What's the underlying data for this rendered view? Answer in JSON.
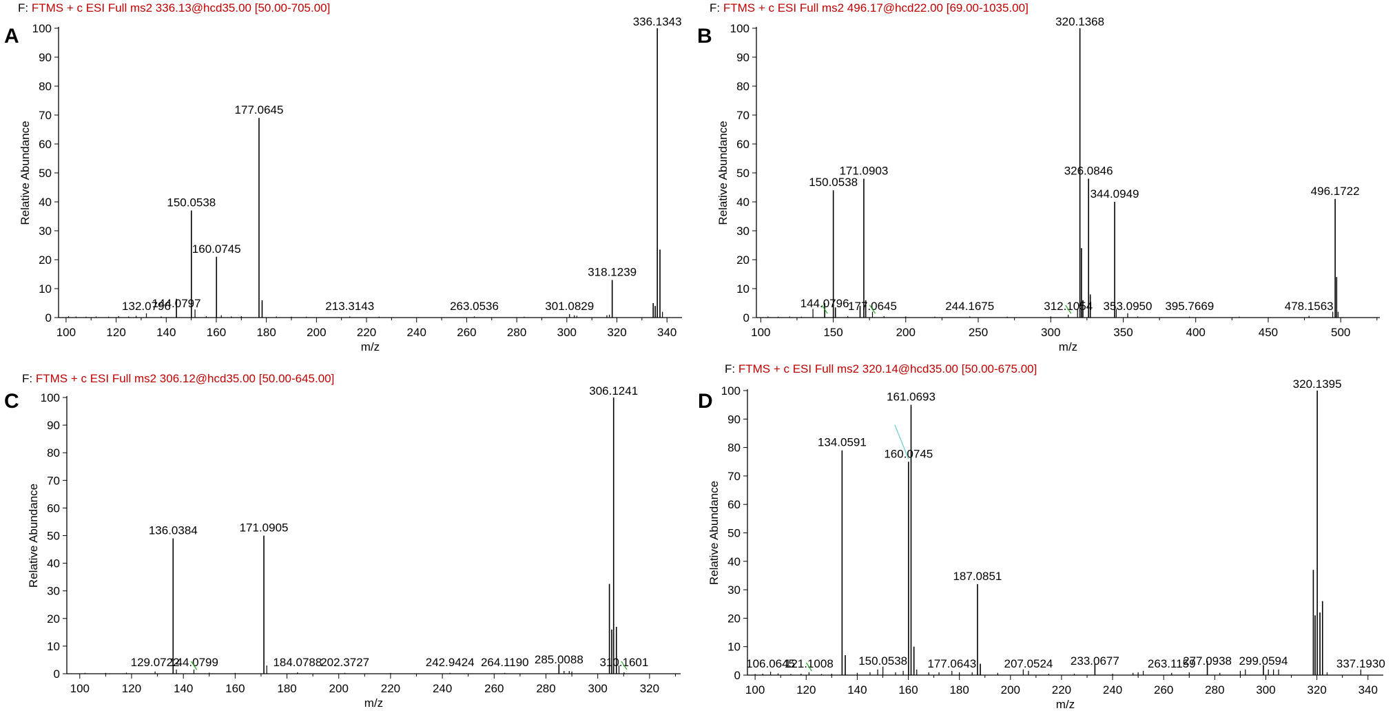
{
  "colors": {
    "axis": "#000000",
    "header_prefix": "#000000",
    "header_text": "#c00000",
    "peak": "#000000",
    "leader_green": "#22aa22",
    "leader_cyan": "#66cccc"
  },
  "chart_data": [
    {
      "panel": "A",
      "type": "bar",
      "header_prefix": "F:",
      "header": "FTMS + c ESI Full ms2 336.13@hcd35.00 [50.00-705.00]",
      "xlabel": "m/z",
      "ylabel": "Relative Abundance",
      "xlim": [
        97,
        346
      ],
      "ylim": [
        0,
        100
      ],
      "xticks": [
        100,
        120,
        140,
        160,
        180,
        200,
        220,
        240,
        260,
        280,
        300,
        320,
        340
      ],
      "yticks": [
        0,
        10,
        20,
        30,
        40,
        50,
        60,
        70,
        80,
        90,
        100
      ],
      "peaks": [
        {
          "mz": 101,
          "y": 0.5
        },
        {
          "mz": 104,
          "y": 0.4
        },
        {
          "mz": 108,
          "y": 0.3
        },
        {
          "mz": 112,
          "y": 0.4
        },
        {
          "mz": 117,
          "y": 0.3
        },
        {
          "mz": 121,
          "y": 0.5
        },
        {
          "mz": 125,
          "y": 0.4
        },
        {
          "mz": 128,
          "y": 0.6
        },
        {
          "mz": 132.0796,
          "y": 1.5
        },
        {
          "mz": 138,
          "y": 0.4
        },
        {
          "mz": 144.0797,
          "y": 6.5
        },
        {
          "mz": 150.0538,
          "y": 37
        },
        {
          "mz": 151.5,
          "y": 2.8
        },
        {
          "mz": 156,
          "y": 0.5
        },
        {
          "mz": 160.0745,
          "y": 21
        },
        {
          "mz": 162,
          "y": 0.8
        },
        {
          "mz": 166,
          "y": 0.4
        },
        {
          "mz": 170,
          "y": 0.5
        },
        {
          "mz": 177.0645,
          "y": 69
        },
        {
          "mz": 178.3,
          "y": 6
        },
        {
          "mz": 184,
          "y": 0.4
        },
        {
          "mz": 190,
          "y": 0.3
        },
        {
          "mz": 196,
          "y": 0.3
        },
        {
          "mz": 213.3143,
          "y": 0.4
        },
        {
          "mz": 225,
          "y": 0.3
        },
        {
          "mz": 263.0536,
          "y": 0.4
        },
        {
          "mz": 283,
          "y": 0.3
        },
        {
          "mz": 301.0829,
          "y": 1.2
        },
        {
          "mz": 303,
          "y": 0.8
        },
        {
          "mz": 304,
          "y": 0.6
        },
        {
          "mz": 316,
          "y": 0.8
        },
        {
          "mz": 317,
          "y": 1
        },
        {
          "mz": 318.1239,
          "y": 13
        },
        {
          "mz": 334.5,
          "y": 5
        },
        {
          "mz": 335.3,
          "y": 4
        },
        {
          "mz": 336.1343,
          "y": 100
        },
        {
          "mz": 337.2,
          "y": 23.5
        },
        {
          "mz": 338.2,
          "y": 2
        }
      ],
      "labels": [
        {
          "text": "336.1343",
          "mz": 336.1343,
          "y": 100
        },
        {
          "text": "177.0645",
          "mz": 177.0645,
          "y": 69
        },
        {
          "text": "150.0538",
          "mz": 150.0538,
          "y": 37
        },
        {
          "text": "160.0745",
          "mz": 160.0745,
          "y": 21
        },
        {
          "text": "318.1239",
          "mz": 318.1239,
          "y": 13
        },
        {
          "text": "144.0797",
          "mz": 144.0797,
          "y": 6.5
        },
        {
          "text": "132.0796",
          "mz": 132.0796,
          "y": 1.5
        },
        {
          "text": "213.3143",
          "mz": 213.3143,
          "y": 0.4
        },
        {
          "text": "263.0536",
          "mz": 263.0536,
          "y": 0.4
        },
        {
          "text": "301.0829",
          "mz": 301.0829,
          "y": 1.2
        }
      ]
    },
    {
      "panel": "B",
      "type": "bar",
      "header_prefix": "F:",
      "header": "FTMS + c ESI Full ms2 496.17@hcd22.00 [69.00-1035.00]",
      "xlabel": "m/z",
      "ylabel": "Relative Abundance",
      "xlim": [
        97,
        527
      ],
      "ylim": [
        0,
        100
      ],
      "xticks": [
        100,
        150,
        200,
        250,
        300,
        350,
        400,
        450,
        500
      ],
      "yticks": [
        0,
        10,
        20,
        30,
        40,
        50,
        60,
        70,
        80,
        90,
        100
      ],
      "peaks": [
        {
          "mz": 105,
          "y": 0.4
        },
        {
          "mz": 112,
          "y": 0.3
        },
        {
          "mz": 120,
          "y": 0.4
        },
        {
          "mz": 128,
          "y": 0.3
        },
        {
          "mz": 136,
          "y": 3
        },
        {
          "mz": 144.0796,
          "y": 5
        },
        {
          "mz": 150.0538,
          "y": 44
        },
        {
          "mz": 151.5,
          "y": 3.5
        },
        {
          "mz": 160,
          "y": 0.5
        },
        {
          "mz": 168.5,
          "y": 4
        },
        {
          "mz": 171.0903,
          "y": 48
        },
        {
          "mz": 172.4,
          "y": 6
        },
        {
          "mz": 177.0645,
          "y": 2
        },
        {
          "mz": 185,
          "y": 0.5
        },
        {
          "mz": 200,
          "y": 0.4
        },
        {
          "mz": 220,
          "y": 0.3
        },
        {
          "mz": 244.1675,
          "y": 0.4
        },
        {
          "mz": 270,
          "y": 0.3
        },
        {
          "mz": 300,
          "y": 0.4
        },
        {
          "mz": 312.1054,
          "y": 1
        },
        {
          "mz": 318.5,
          "y": 3
        },
        {
          "mz": 320.1368,
          "y": 100
        },
        {
          "mz": 321.2,
          "y": 24
        },
        {
          "mz": 322.2,
          "y": 6
        },
        {
          "mz": 326.0846,
          "y": 48
        },
        {
          "mz": 327.3,
          "y": 8
        },
        {
          "mz": 344.0949,
          "y": 40
        },
        {
          "mz": 345.2,
          "y": 3
        },
        {
          "mz": 353.095,
          "y": 1.5
        },
        {
          "mz": 360,
          "y": 0.4
        },
        {
          "mz": 395.7669,
          "y": 0.3
        },
        {
          "mz": 430,
          "y": 0.3
        },
        {
          "mz": 478.1563,
          "y": 0.6
        },
        {
          "mz": 494.5,
          "y": 2
        },
        {
          "mz": 496.1722,
          "y": 41
        },
        {
          "mz": 497.2,
          "y": 14
        },
        {
          "mz": 498.2,
          "y": 2
        }
      ],
      "labels": [
        {
          "text": "320.1368",
          "mz": 320.1368,
          "y": 100
        },
        {
          "text": "171.0903",
          "mz": 171.0903,
          "y": 48
        },
        {
          "text": "150.0538",
          "mz": 150.0538,
          "y": 44
        },
        {
          "text": "326.0846",
          "mz": 326.0846,
          "y": 48
        },
        {
          "text": "344.0949",
          "mz": 344.0949,
          "y": 40
        },
        {
          "text": "496.1722",
          "mz": 496.1722,
          "y": 41
        },
        {
          "text": "144.0796",
          "mz": 144.0796,
          "y": 5
        },
        {
          "text": "177.0645",
          "mz": 177.0645,
          "y": 2
        },
        {
          "text": "244.1675",
          "mz": 244.1675,
          "y": 0.4
        },
        {
          "text": "312.1054",
          "mz": 312.1054,
          "y": 1
        },
        {
          "text": "353.0950",
          "mz": 353.095,
          "y": 1.5
        },
        {
          "text": "395.7669",
          "mz": 395.7669,
          "y": 0.3
        },
        {
          "text": "478.1563",
          "mz": 478.1563,
          "y": 0.6
        }
      ]
    },
    {
      "panel": "C",
      "type": "bar",
      "header_prefix": "F:",
      "header": "FTMS + c ESI Full ms2 306.12@hcd35.00 [50.00-645.00]",
      "xlabel": "m/z",
      "ylabel": "Relative Abundance",
      "xlim": [
        95,
        332
      ],
      "ylim": [
        0,
        100
      ],
      "xticks": [
        100,
        120,
        140,
        160,
        180,
        200,
        220,
        240,
        260,
        280,
        300,
        320
      ],
      "yticks": [
        0,
        10,
        20,
        30,
        40,
        50,
        60,
        70,
        80,
        90,
        100
      ],
      "peaks": [
        {
          "mz": 102,
          "y": 0.3
        },
        {
          "mz": 110,
          "y": 0.3
        },
        {
          "mz": 118,
          "y": 0.4
        },
        {
          "mz": 129.0722,
          "y": 0.8
        },
        {
          "mz": 136.0384,
          "y": 49
        },
        {
          "mz": 137.3,
          "y": 1.5
        },
        {
          "mz": 144.0799,
          "y": 1.5
        },
        {
          "mz": 150,
          "y": 0.4
        },
        {
          "mz": 160,
          "y": 0.3
        },
        {
          "mz": 171.0905,
          "y": 50
        },
        {
          "mz": 172.2,
          "y": 3
        },
        {
          "mz": 184.0788,
          "y": 0.5
        },
        {
          "mz": 202.3727,
          "y": 0.3
        },
        {
          "mz": 220,
          "y": 0.3
        },
        {
          "mz": 242.9424,
          "y": 0.3
        },
        {
          "mz": 264.119,
          "y": 0.3
        },
        {
          "mz": 285.0088,
          "y": 3.5
        },
        {
          "mz": 287,
          "y": 1
        },
        {
          "mz": 289,
          "y": 1
        },
        {
          "mz": 290,
          "y": 0.8
        },
        {
          "mz": 304.5,
          "y": 32.5
        },
        {
          "mz": 305.4,
          "y": 16
        },
        {
          "mz": 306.1241,
          "y": 100
        },
        {
          "mz": 307.2,
          "y": 17
        },
        {
          "mz": 308.2,
          "y": 3
        },
        {
          "mz": 310.1601,
          "y": 0.5
        }
      ],
      "labels": [
        {
          "text": "306.1241",
          "mz": 306.1241,
          "y": 100
        },
        {
          "text": "136.0384",
          "mz": 136.0384,
          "y": 49
        },
        {
          "text": "171.0905",
          "mz": 171.0905,
          "y": 50
        },
        {
          "text": "129.0722",
          "mz": 129.0722,
          "y": 0.8
        },
        {
          "text": "144.0799",
          "mz": 144.0799,
          "y": 1.5
        },
        {
          "text": "184.0788",
          "mz": 184.0788,
          "y": 0.5
        },
        {
          "text": "202.3727",
          "mz": 202.3727,
          "y": 0.3
        },
        {
          "text": "242.9424",
          "mz": 242.9424,
          "y": 0.3
        },
        {
          "text": "264.1190",
          "mz": 264.119,
          "y": 0.3
        },
        {
          "text": "285.0088",
          "mz": 285.0088,
          "y": 3.5
        },
        {
          "text": "310.1601",
          "mz": 310.1601,
          "y": 0.5
        }
      ]
    },
    {
      "panel": "D",
      "type": "bar",
      "header_prefix": "F:",
      "header": "FTMS + c ESI Full ms2 320.14@hcd35.00 [50.00-675.00]",
      "xlabel": "m/z",
      "ylabel": "Relative Abundance",
      "xlim": [
        97,
        346
      ],
      "ylim": [
        0,
        100
      ],
      "xticks": [
        100,
        120,
        140,
        160,
        180,
        200,
        220,
        240,
        260,
        280,
        300,
        320,
        340
      ],
      "yticks": [
        0,
        10,
        20,
        30,
        40,
        50,
        60,
        70,
        80,
        90,
        100
      ],
      "peaks": [
        {
          "mz": 100,
          "y": 0.4
        },
        {
          "mz": 103,
          "y": 0.5
        },
        {
          "mz": 106.0645,
          "y": 1.2
        },
        {
          "mz": 109,
          "y": 0.6
        },
        {
          "mz": 114,
          "y": 0.4
        },
        {
          "mz": 118,
          "y": 0.5
        },
        {
          "mz": 121.1008,
          "y": 1
        },
        {
          "mz": 126,
          "y": 0.4
        },
        {
          "mz": 130,
          "y": 0.5
        },
        {
          "mz": 134.0591,
          "y": 79
        },
        {
          "mz": 135.3,
          "y": 7
        },
        {
          "mz": 140,
          "y": 0.8
        },
        {
          "mz": 145,
          "y": 1
        },
        {
          "mz": 148,
          "y": 2
        },
        {
          "mz": 150.0538,
          "y": 3
        },
        {
          "mz": 155,
          "y": 1
        },
        {
          "mz": 158,
          "y": 1.5
        },
        {
          "mz": 160.0745,
          "y": 75
        },
        {
          "mz": 161.0693,
          "y": 95
        },
        {
          "mz": 162.2,
          "y": 10
        },
        {
          "mz": 163.3,
          "y": 2
        },
        {
          "mz": 168,
          "y": 1
        },
        {
          "mz": 172,
          "y": 1
        },
        {
          "mz": 177.0643,
          "y": 1.5
        },
        {
          "mz": 180,
          "y": 1
        },
        {
          "mz": 185,
          "y": 1
        },
        {
          "mz": 187.0851,
          "y": 32
        },
        {
          "mz": 188.2,
          "y": 4
        },
        {
          "mz": 195,
          "y": 0.8
        },
        {
          "mz": 205,
          "y": 2
        },
        {
          "mz": 207.0524,
          "y": 1.5
        },
        {
          "mz": 215,
          "y": 0.5
        },
        {
          "mz": 225,
          "y": 0.5
        },
        {
          "mz": 233.0677,
          "y": 4
        },
        {
          "mz": 240,
          "y": 0.5
        },
        {
          "mz": 248,
          "y": 0.8
        },
        {
          "mz": 250,
          "y": 1
        },
        {
          "mz": 252,
          "y": 1.5
        },
        {
          "mz": 263.1159,
          "y": 0.8
        },
        {
          "mz": 270,
          "y": 1
        },
        {
          "mz": 277.0938,
          "y": 5
        },
        {
          "mz": 282,
          "y": 0.8
        },
        {
          "mz": 290,
          "y": 1.5
        },
        {
          "mz": 292,
          "y": 2
        },
        {
          "mz": 299.0594,
          "y": 3.5
        },
        {
          "mz": 301,
          "y": 2
        },
        {
          "mz": 303,
          "y": 2
        },
        {
          "mz": 305,
          "y": 2
        },
        {
          "mz": 318.6,
          "y": 37
        },
        {
          "mz": 319.3,
          "y": 21
        },
        {
          "mz": 320.1395,
          "y": 100
        },
        {
          "mz": 321.2,
          "y": 22
        },
        {
          "mz": 322.2,
          "y": 26
        },
        {
          "mz": 324,
          "y": 1
        },
        {
          "mz": 337.193,
          "y": 2
        }
      ],
      "labels": [
        {
          "text": "320.1395",
          "mz": 320.1395,
          "y": 100
        },
        {
          "text": "161.0693",
          "mz": 161.0693,
          "y": 95
        },
        {
          "text": "160.0745",
          "mz": 160.0745,
          "y": 75
        },
        {
          "text": "134.0591",
          "mz": 134.0591,
          "y": 79
        },
        {
          "text": "187.0851",
          "mz": 187.0851,
          "y": 32
        },
        {
          "text": "106.0645",
          "mz": 106.0645,
          "y": 1.2
        },
        {
          "text": "121.1008",
          "mz": 121.1008,
          "y": 1
        },
        {
          "text": "150.0538",
          "mz": 150.0538,
          "y": 3
        },
        {
          "text": "177.0643",
          "mz": 177.0643,
          "y": 1.5
        },
        {
          "text": "207.0524",
          "mz": 207.0524,
          "y": 1.5
        },
        {
          "text": "233.0677",
          "mz": 233.0677,
          "y": 4
        },
        {
          "text": "263.1159",
          "mz": 263.1159,
          "y": 0.8
        },
        {
          "text": "277.0938",
          "mz": 277.0938,
          "y": 5
        },
        {
          "text": "299.0594",
          "mz": 299.0594,
          "y": 3.5
        },
        {
          "text": "337.1930",
          "mz": 337.193,
          "y": 2
        }
      ]
    }
  ]
}
